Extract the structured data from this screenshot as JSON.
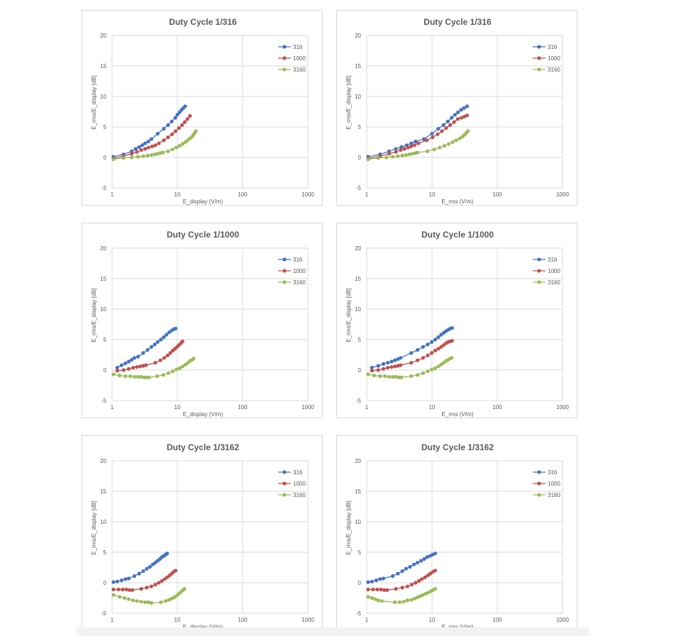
{
  "colors": {
    "series_316": "#4472c4",
    "series_1000": "#c0504d",
    "series_3160": "#9bbb59",
    "grid": "#d9d9d9"
  },
  "charts": [
    {
      "title": "Duty Cycle 1/316",
      "xlabel": "E_display (V/m)",
      "ylabel": "E_rms/E_display [dB]",
      "xticks": [
        "1",
        "10",
        "100",
        "1000"
      ],
      "yticks": [
        "20",
        "15",
        "10",
        "5",
        "0",
        "-5"
      ],
      "legend": [
        "316",
        "1000",
        "3160"
      ]
    },
    {
      "title": "Duty Cycle 1/316",
      "xlabel": "E_rms (V/m)",
      "ylabel": "E_rms/E_display [dB]",
      "xticks": [
        "1",
        "10",
        "100",
        "1000"
      ],
      "yticks": [
        "20",
        "15",
        "10",
        "5",
        "0",
        "-5"
      ],
      "legend": [
        "316",
        "1000",
        "3160"
      ]
    },
    {
      "title": "Duty Cycle 1/1000",
      "xlabel": "E_display (V/m)",
      "ylabel": "E_rms/E_display [dB]",
      "xticks": [
        "1",
        "10",
        "100",
        "1000"
      ],
      "yticks": [
        "20",
        "15",
        "10",
        "5",
        "0",
        "-5"
      ],
      "legend": [
        "316",
        "1000",
        "3160"
      ]
    },
    {
      "title": "Duty Cycle 1/1000",
      "xlabel": "E_rms (V/m)",
      "ylabel": "E_rms/E_display [dB]",
      "xticks": [
        "1",
        "10",
        "100",
        "1000"
      ],
      "yticks": [
        "20",
        "15",
        "10",
        "5",
        "0",
        "-5"
      ],
      "legend": [
        "316",
        "1000",
        "3160"
      ]
    },
    {
      "title": "Duty Cycle 1/3162",
      "xlabel": "E_display (V/m)",
      "ylabel": "E_rms/E_display [dB]",
      "xticks": [
        "1",
        "10",
        "100",
        "1000"
      ],
      "yticks": [
        "20",
        "15",
        "10",
        "5",
        "0",
        "-5"
      ],
      "legend": [
        "316",
        "1000",
        "3160"
      ]
    },
    {
      "title": "Duty Cycle 1/3162",
      "xlabel": "E_rms (V/m)",
      "ylabel": "E_rms/E_display [dB]",
      "xticks": [
        "1",
        "10",
        "100",
        "1000"
      ],
      "yticks": [
        "20",
        "15",
        "10",
        "5",
        "0",
        "-5"
      ],
      "legend": [
        "316",
        "1000",
        "3160"
      ]
    }
  ],
  "chart_data": [
    {
      "type": "line",
      "title": "Duty Cycle 1/316",
      "xlabel": "E_display (V/m)",
      "ylabel": "E_rms/E_display [dB]",
      "xscale": "log",
      "xlim": [
        1,
        1000
      ],
      "ylim": [
        -5,
        20
      ],
      "grid": true,
      "legend_position": "top-right",
      "series": [
        {
          "name": "316",
          "x": [
            1.05,
            1.5,
            2,
            2.3,
            2.6,
            2.9,
            3.2,
            3.6,
            4.0,
            5.0,
            6.2,
            7.2,
            8.2,
            9.3,
            10.0,
            10.8,
            11.6,
            12.4,
            13.2
          ],
          "y": [
            0.1,
            0.5,
            1.0,
            1.4,
            1.7,
            2.0,
            2.3,
            2.6,
            3.0,
            3.9,
            4.7,
            5.3,
            5.9,
            6.5,
            7.0,
            7.4,
            7.8,
            8.1,
            8.4
          ]
        },
        {
          "name": "1000",
          "x": [
            1.05,
            1.5,
            2,
            2.4,
            2.8,
            3.2,
            3.6,
            4.1,
            4.6,
            5.2,
            6.2,
            7.2,
            8.3,
            9.4,
            10.6,
            11.8,
            13.0,
            14.3,
            15.6
          ],
          "y": [
            -0.2,
            0.2,
            0.6,
            0.9,
            1.2,
            1.4,
            1.6,
            1.8,
            2.0,
            2.3,
            2.8,
            3.3,
            3.8,
            4.3,
            4.8,
            5.3,
            5.8,
            6.3,
            6.8
          ]
        },
        {
          "name": "3160",
          "x": [
            1.05,
            1.5,
            2,
            2.5,
            3.0,
            3.5,
            4.0,
            4.5,
            5.0,
            5.5,
            6.0,
            7.2,
            8.4,
            9.6,
            10.8,
            12.0,
            13.2,
            14.4,
            15.6,
            16.8,
            17.6,
            18.4,
            19.2
          ],
          "y": [
            -0.3,
            -0.1,
            0.0,
            0.1,
            0.2,
            0.3,
            0.4,
            0.5,
            0.6,
            0.7,
            0.8,
            1.0,
            1.3,
            1.6,
            1.9,
            2.2,
            2.5,
            2.8,
            3.1,
            3.4,
            3.7,
            4.0,
            4.3
          ]
        }
      ]
    },
    {
      "type": "line",
      "title": "Duty Cycle 1/316",
      "xlabel": "E_rms (V/m)",
      "ylabel": "E_rms/E_display [dB]",
      "xscale": "log",
      "xlim": [
        1,
        1000
      ],
      "ylim": [
        -5,
        20
      ],
      "grid": true,
      "legend_position": "top-right",
      "series": [
        {
          "name": "316",
          "x": [
            1.05,
            1.6,
            2.2,
            2.8,
            3.4,
            4.1,
            4.8,
            5.6,
            7.5,
            10,
            12.5,
            15,
            17.5,
            20,
            22.5,
            25,
            28,
            31,
            34.5
          ],
          "y": [
            0.1,
            0.5,
            1.0,
            1.4,
            1.7,
            2.0,
            2.3,
            2.6,
            3.0,
            3.9,
            4.7,
            5.3,
            5.9,
            6.5,
            7.0,
            7.4,
            7.8,
            8.1,
            8.4
          ]
        },
        {
          "name": "1000",
          "x": [
            1.05,
            1.6,
            2.2,
            2.8,
            3.3,
            3.8,
            4.3,
            4.8,
            5.4,
            6.2,
            8.3,
            10.2,
            12.2,
            14.2,
            16.5,
            19,
            21.8,
            24.8,
            28.2,
            31.5,
            34.5
          ],
          "y": [
            -0.2,
            0.2,
            0.6,
            0.9,
            1.2,
            1.4,
            1.6,
            1.8,
            2.0,
            2.3,
            2.8,
            3.3,
            3.8,
            4.3,
            4.8,
            5.3,
            5.8,
            6.3,
            6.5,
            6.7,
            6.9
          ]
        },
        {
          "name": "3160",
          "x": [
            1.05,
            1.5,
            2,
            2.5,
            3.0,
            3.5,
            4.0,
            4.5,
            5.0,
            5.5,
            6.0,
            8.5,
            10.8,
            13.0,
            15.5,
            18.0,
            20.7,
            23.5,
            26.5,
            29.2,
            31.5,
            33.5,
            35.5
          ],
          "y": [
            -0.3,
            -0.1,
            0.0,
            0.1,
            0.2,
            0.3,
            0.4,
            0.5,
            0.6,
            0.7,
            0.8,
            1.0,
            1.3,
            1.6,
            1.9,
            2.2,
            2.5,
            2.8,
            3.1,
            3.4,
            3.7,
            4.0,
            4.3
          ]
        }
      ]
    },
    {
      "type": "line",
      "title": "Duty Cycle 1/1000",
      "xlabel": "E_display (V/m)",
      "ylabel": "E_rms/E_display [dB]",
      "xscale": "log",
      "xlim": [
        1,
        1000
      ],
      "ylim": [
        -5,
        20
      ],
      "grid": true,
      "legend_position": "top-right",
      "series": [
        {
          "name": "316",
          "x": [
            1.2,
            1.4,
            1.6,
            1.8,
            2.0,
            2.2,
            2.5,
            3.0,
            3.5,
            4.0,
            4.5,
            5.0,
            5.6,
            6.2,
            6.8,
            7.5,
            8.2,
            8.8,
            9.4
          ],
          "y": [
            0.4,
            0.8,
            1.1,
            1.4,
            1.7,
            2.0,
            2.2,
            2.8,
            3.3,
            3.8,
            4.2,
            4.6,
            5.0,
            5.4,
            5.8,
            6.2,
            6.5,
            6.7,
            6.8
          ]
        },
        {
          "name": "1000",
          "x": [
            1.2,
            1.5,
            1.8,
            2.1,
            2.4,
            2.7,
            3.0,
            3.3,
            4.6,
            5.5,
            6.3,
            7.1,
            7.8,
            8.5,
            9.2,
            9.9,
            10.6,
            11.3,
            12.0
          ],
          "y": [
            -0.1,
            0.0,
            0.2,
            0.4,
            0.5,
            0.6,
            0.7,
            0.8,
            1.2,
            1.6,
            2.0,
            2.4,
            2.8,
            3.2,
            3.5,
            3.8,
            4.1,
            4.4,
            4.7
          ]
        },
        {
          "name": "3160",
          "x": [
            1.05,
            1.3,
            1.6,
            1.9,
            2.2,
            2.5,
            2.8,
            3.1,
            3.4,
            3.7,
            4.9,
            6.1,
            7.3,
            8.5,
            9.7,
            10.9,
            12.1,
            13.3,
            14.5,
            15.7,
            16.9,
            17.8
          ],
          "y": [
            -0.7,
            -0.9,
            -1.0,
            -1.0,
            -1.1,
            -1.1,
            -1.1,
            -1.2,
            -1.2,
            -1.2,
            -1.0,
            -0.8,
            -0.5,
            -0.2,
            0.1,
            0.3,
            0.6,
            0.9,
            1.2,
            1.5,
            1.7,
            1.9
          ]
        }
      ]
    },
    {
      "type": "line",
      "title": "Duty Cycle 1/1000",
      "xlabel": "E_rms (V/m)",
      "ylabel": "E_rms/E_display [dB]",
      "xscale": "log",
      "xlim": [
        1,
        1000
      ],
      "ylim": [
        -5,
        20
      ],
      "grid": true,
      "legend_position": "top-right",
      "series": [
        {
          "name": "316",
          "x": [
            1.2,
            1.5,
            1.8,
            2.1,
            2.4,
            2.7,
            3.0,
            3.3,
            4.8,
            6.0,
            7.3,
            8.6,
            9.9,
            11.2,
            12.5,
            13.8,
            15.1,
            16.4,
            17.7,
            19.0,
            20.3
          ],
          "y": [
            0.4,
            0.7,
            1.0,
            1.2,
            1.4,
            1.6,
            1.8,
            2.0,
            2.8,
            3.3,
            3.8,
            4.2,
            4.6,
            5.0,
            5.4,
            5.8,
            6.1,
            6.4,
            6.6,
            6.8,
            6.9
          ]
        },
        {
          "name": "1000",
          "x": [
            1.2,
            1.5,
            1.8,
            2.1,
            2.4,
            2.7,
            3.0,
            3.3,
            4.8,
            6.0,
            7.3,
            8.6,
            9.9,
            11.2,
            12.5,
            13.8,
            15.1,
            16.4,
            17.7,
            19.0,
            20.3
          ],
          "y": [
            -0.1,
            0.0,
            0.2,
            0.4,
            0.5,
            0.6,
            0.7,
            0.8,
            1.2,
            1.6,
            2.0,
            2.4,
            2.8,
            3.2,
            3.5,
            3.8,
            4.1,
            4.4,
            4.6,
            4.7,
            4.8
          ]
        },
        {
          "name": "3160",
          "x": [
            1.05,
            1.3,
            1.6,
            1.9,
            2.2,
            2.5,
            2.8,
            3.1,
            3.4,
            4.8,
            6.0,
            7.3,
            8.6,
            9.9,
            11.2,
            12.5,
            13.8,
            15.1,
            16.4,
            17.7,
            19.0,
            20.0
          ],
          "y": [
            -0.7,
            -0.9,
            -1.0,
            -1.0,
            -1.1,
            -1.1,
            -1.1,
            -1.2,
            -1.2,
            -1.0,
            -0.8,
            -0.5,
            -0.2,
            0.1,
            0.3,
            0.6,
            0.9,
            1.2,
            1.5,
            1.7,
            1.9,
            2.0
          ]
        }
      ]
    },
    {
      "type": "line",
      "title": "Duty Cycle 1/3162",
      "xlabel": "E_display (V/m)",
      "ylabel": "E_rms/E_display [dB]",
      "xscale": "log",
      "xlim": [
        1,
        1000
      ],
      "ylim": [
        -5,
        20
      ],
      "grid": true,
      "legend_position": "top-right",
      "series": [
        {
          "name": "316",
          "x": [
            1.05,
            1.2,
            1.4,
            1.6,
            1.8,
            2.2,
            2.6,
            3.0,
            3.4,
            3.8,
            4.2,
            4.6,
            5.0,
            5.4,
            5.8,
            6.2,
            6.6,
            7.0
          ],
          "y": [
            0.1,
            0.2,
            0.4,
            0.6,
            0.7,
            1.1,
            1.5,
            1.9,
            2.3,
            2.6,
            3.0,
            3.3,
            3.6,
            3.9,
            4.2,
            4.4,
            4.6,
            4.8
          ]
        },
        {
          "name": "1000",
          "x": [
            1.05,
            1.25,
            1.45,
            1.65,
            1.85,
            2.05,
            2.8,
            3.4,
            4.0,
            4.6,
            5.2,
            5.8,
            6.4,
            7.0,
            7.6,
            8.2,
            8.8,
            9.4
          ],
          "y": [
            -1.1,
            -1.1,
            -1.1,
            -1.1,
            -1.2,
            -1.2,
            -1.0,
            -0.8,
            -0.6,
            -0.3,
            0.0,
            0.3,
            0.6,
            0.9,
            1.2,
            1.5,
            1.8,
            2.0
          ]
        },
        {
          "name": "3160",
          "x": [
            1.05,
            1.3,
            1.55,
            1.8,
            2.1,
            2.4,
            2.8,
            3.2,
            3.6,
            4.0,
            5.6,
            6.6,
            7.4,
            8.2,
            9.0,
            9.8,
            10.6,
            11.4,
            12.2,
            12.8
          ],
          "y": [
            -2.0,
            -2.3,
            -2.5,
            -2.7,
            -2.9,
            -3.0,
            -3.1,
            -3.2,
            -3.2,
            -3.3,
            -3.2,
            -3.0,
            -2.8,
            -2.6,
            -2.4,
            -2.1,
            -1.8,
            -1.5,
            -1.2,
            -1.0
          ]
        }
      ]
    },
    {
      "type": "line",
      "title": "Duty Cycle 1/3162",
      "xlabel": "E_rms (V/m)",
      "ylabel": "E_rms/E_display [dB]",
      "xscale": "log",
      "xlim": [
        1,
        1000
      ],
      "ylim": [
        -5,
        20
      ],
      "grid": true,
      "legend_position": "top-right",
      "series": [
        {
          "name": "316",
          "x": [
            1.05,
            1.2,
            1.4,
            1.6,
            1.8,
            2.5,
            3.0,
            3.5,
            4.0,
            4.6,
            5.3,
            6.0,
            6.8,
            7.6,
            8.4,
            9.3,
            10.2,
            11.2
          ],
          "y": [
            0.1,
            0.2,
            0.4,
            0.6,
            0.7,
            1.1,
            1.5,
            1.9,
            2.3,
            2.6,
            3.0,
            3.3,
            3.6,
            3.9,
            4.2,
            4.4,
            4.6,
            4.8
          ]
        },
        {
          "name": "1000",
          "x": [
            1.05,
            1.25,
            1.45,
            1.65,
            1.85,
            2.05,
            2.8,
            3.5,
            4.2,
            4.9,
            5.6,
            6.3,
            7.0,
            7.8,
            8.6,
            9.4,
            10.3,
            11.2
          ],
          "y": [
            -1.1,
            -1.1,
            -1.1,
            -1.1,
            -1.2,
            -1.2,
            -1.0,
            -0.8,
            -0.6,
            -0.3,
            0.0,
            0.3,
            0.6,
            0.9,
            1.2,
            1.5,
            1.8,
            2.0
          ]
        },
        {
          "name": "3160",
          "x": [
            1.05,
            1.2,
            1.35,
            1.5,
            1.7,
            2.7,
            3.2,
            3.7,
            4.2,
            4.8,
            5.4,
            6.0,
            6.6,
            7.3,
            8.0,
            8.8,
            9.6,
            10.4,
            11.2
          ],
          "y": [
            -2.3,
            -2.5,
            -2.7,
            -2.9,
            -3.0,
            -3.2,
            -3.2,
            -3.1,
            -2.9,
            -2.8,
            -2.6,
            -2.4,
            -2.2,
            -2.0,
            -1.8,
            -1.6,
            -1.4,
            -1.2,
            -1.0
          ]
        }
      ]
    }
  ]
}
